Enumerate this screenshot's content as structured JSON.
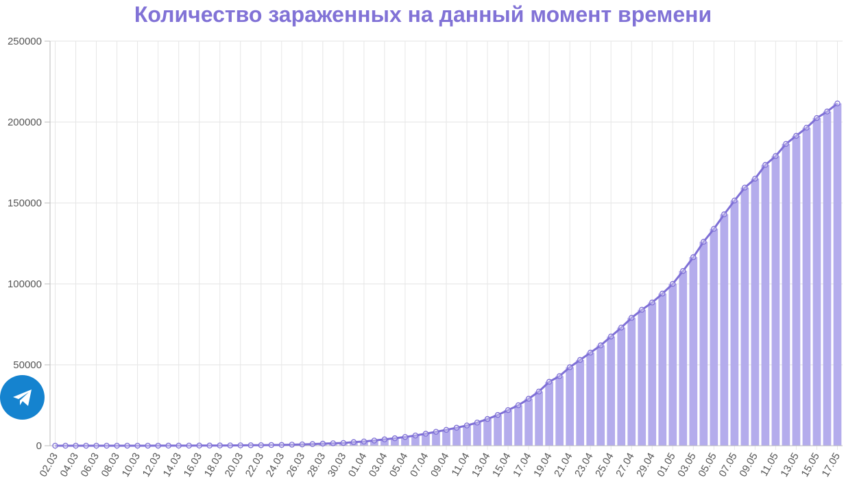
{
  "chart_data": {
    "type": "bar",
    "title": "Количество зараженных на данный момент времени",
    "xlabel": "",
    "ylabel": "",
    "ylim": [
      0,
      250000
    ],
    "yticks": [
      0,
      50000,
      100000,
      150000,
      200000,
      250000
    ],
    "grid": true,
    "legend": "none",
    "overlay_line": true,
    "colors": {
      "title": "#8172d6",
      "bar": "#b4acec",
      "line": "#7e6fd6"
    },
    "categories": [
      "02.03",
      "03.03",
      "04.03",
      "05.03",
      "06.03",
      "07.03",
      "08.03",
      "09.03",
      "10.03",
      "11.03",
      "12.03",
      "13.03",
      "14.03",
      "15.03",
      "16.03",
      "17.03",
      "18.03",
      "19.03",
      "20.03",
      "21.03",
      "22.03",
      "23.03",
      "24.03",
      "25.03",
      "26.03",
      "27.03",
      "28.03",
      "29.03",
      "30.03",
      "31.03",
      "01.04",
      "02.04",
      "03.04",
      "04.04",
      "05.04",
      "06.04",
      "07.04",
      "08.04",
      "09.04",
      "10.04",
      "11.04",
      "12.04",
      "13.04",
      "14.04",
      "15.04",
      "16.04",
      "17.04",
      "18.04",
      "19.04",
      "20.04",
      "21.04",
      "22.04",
      "23.04",
      "24.04",
      "25.04",
      "26.04",
      "27.04",
      "28.04",
      "29.04",
      "30.04",
      "01.05",
      "02.05",
      "03.05",
      "04.05",
      "05.05",
      "06.05",
      "07.05",
      "08.05",
      "09.05",
      "10.05",
      "11.05",
      "12.05",
      "13.05",
      "14.05",
      "15.05",
      "16.05",
      "17.05"
    ],
    "values": [
      3,
      3,
      3,
      4,
      4,
      6,
      9,
      10,
      13,
      17,
      26,
      29,
      44,
      55,
      83,
      87,
      140,
      180,
      220,
      280,
      330,
      420,
      470,
      650,
      800,
      1000,
      1250,
      1500,
      1700,
      2200,
      2600,
      3200,
      3900,
      4600,
      5400,
      6300,
      7400,
      8600,
      9800,
      11100,
      12500,
      14300,
      16500,
      19000,
      22000,
      25000,
      29000,
      33500,
      39500,
      43000,
      48500,
      53000,
      57500,
      62000,
      67500,
      73000,
      79000,
      84000,
      88500,
      94000,
      100000,
      108000,
      116500,
      126000,
      134000,
      143000,
      151500,
      159500,
      165000,
      173500,
      179000,
      186500,
      191500,
      196500,
      202500,
      206500,
      211500
    ]
  },
  "telegram_button": {
    "icon": "telegram-icon",
    "color": "#1583cf"
  }
}
